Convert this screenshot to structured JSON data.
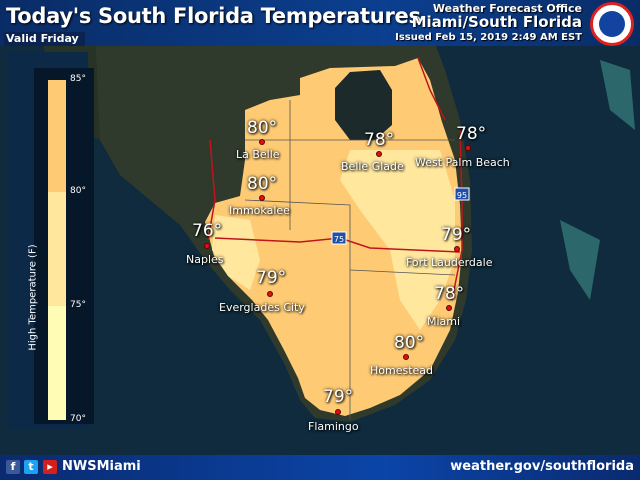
{
  "header": {
    "title": "Today's South Florida Temperatures",
    "valid": "Valid Friday",
    "office_line1": "Weather Forecast Office",
    "office_line2": "Miami/South Florida",
    "issued": "Issued Feb 15, 2019 2:49 AM EST"
  },
  "legend": {
    "title": "High Temperature (F)",
    "ticks": [
      "85°",
      "80°",
      "75°",
      "70°"
    ],
    "bins": [
      {
        "range": "80-85",
        "color": "#fecb74"
      },
      {
        "range": "75-80",
        "color": "#ffe79e"
      },
      {
        "range": "70-75",
        "color": "#fffdb5"
      }
    ]
  },
  "cities": [
    {
      "name": "La Belle",
      "temp": "80°"
    },
    {
      "name": "Belle Glade",
      "temp": "78°"
    },
    {
      "name": "West Palm Beach",
      "temp": "78°"
    },
    {
      "name": "Immokalee",
      "temp": "80°"
    },
    {
      "name": "Naples",
      "temp": "76°"
    },
    {
      "name": "Fort Lauderdale",
      "temp": "79°"
    },
    {
      "name": "Everglades City",
      "temp": "79°"
    },
    {
      "name": "Miami",
      "temp": "78°"
    },
    {
      "name": "Homestead",
      "temp": "80°"
    },
    {
      "name": "Flamingo",
      "temp": "79°"
    }
  ],
  "highways": [
    "75",
    "95"
  ],
  "footer": {
    "handle": "NWSMiami",
    "website": "weather.gov/southflorida",
    "social_icons": [
      "facebook-icon",
      "twitter-icon",
      "youtube-icon"
    ]
  }
}
